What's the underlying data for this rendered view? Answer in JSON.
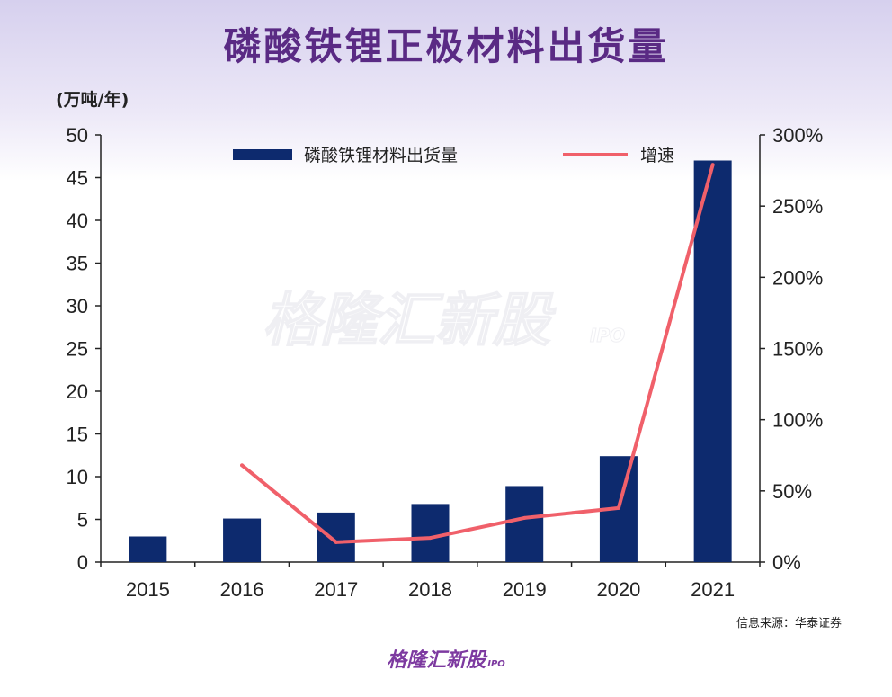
{
  "title": "磷酸铁锂正极材料出货量",
  "unit_label": "(万吨/年)",
  "source": "信息来源：华泰证券",
  "watermark": {
    "main": "格隆汇新股",
    "sub": "IPO"
  },
  "footer_logo": {
    "main": "格隆汇新股",
    "sub": "IPO"
  },
  "colors": {
    "bar": "#0d2a6e",
    "line": "#f0606a",
    "title": "#5a2a84"
  },
  "chart_data": {
    "type": "bar",
    "categories": [
      "2015",
      "2016",
      "2017",
      "2018",
      "2019",
      "2020",
      "2021"
    ],
    "series": [
      {
        "name": "磷酸铁锂材料出货量",
        "type": "bar",
        "axis": "left",
        "values": [
          3.0,
          5.1,
          5.8,
          6.8,
          8.9,
          12.4,
          47.0
        ]
      },
      {
        "name": "增速",
        "type": "line",
        "axis": "right",
        "values": [
          null,
          68,
          14,
          17,
          31,
          38,
          279
        ]
      }
    ],
    "left_axis": {
      "ylim": [
        0,
        50
      ],
      "ticks": [
        0,
        5,
        10,
        15,
        20,
        25,
        30,
        35,
        40,
        45,
        50
      ]
    },
    "right_axis": {
      "ylim": [
        0,
        300
      ],
      "ticks": [
        "0%",
        "50%",
        "100%",
        "150%",
        "200%",
        "250%",
        "300%"
      ]
    },
    "legend_position": "top"
  }
}
